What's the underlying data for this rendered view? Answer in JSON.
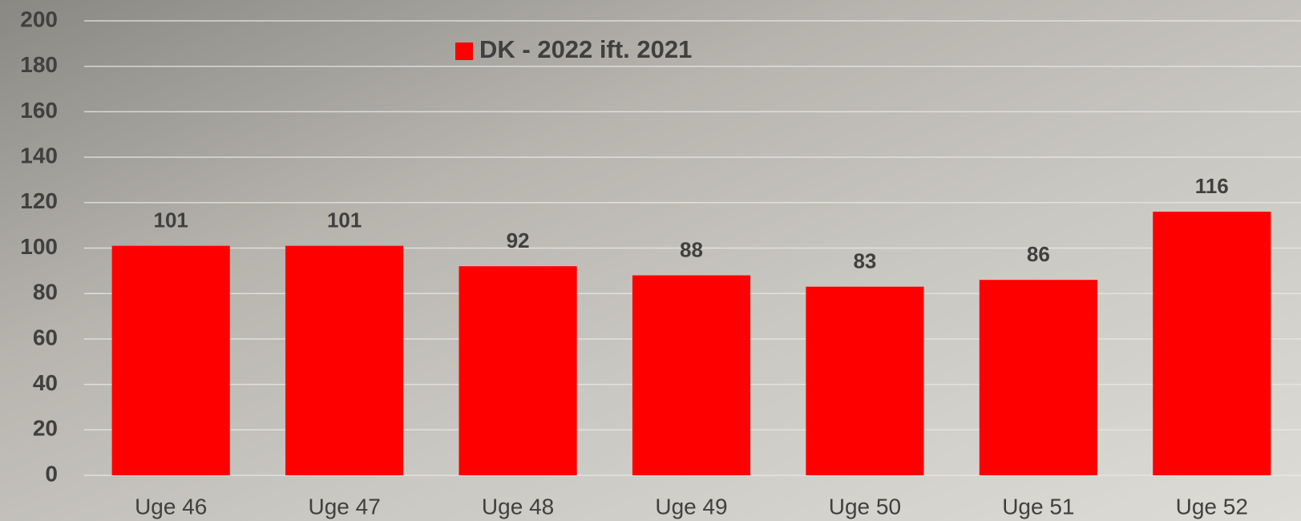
{
  "chart_data": {
    "type": "bar",
    "categories": [
      "Uge 46",
      "Uge 47",
      "Uge 48",
      "Uge 49",
      "Uge 50",
      "Uge 51",
      "Uge 52"
    ],
    "series": [
      {
        "name": "DK - 2022 ift. 2021",
        "color": "#ff0000",
        "values": [
          101,
          101,
          92,
          88,
          83,
          86,
          116
        ]
      }
    ],
    "ylim": [
      0,
      200
    ],
    "yticks": [
      0,
      20,
      40,
      60,
      80,
      100,
      120,
      140,
      160,
      180,
      200
    ],
    "grid": true
  }
}
